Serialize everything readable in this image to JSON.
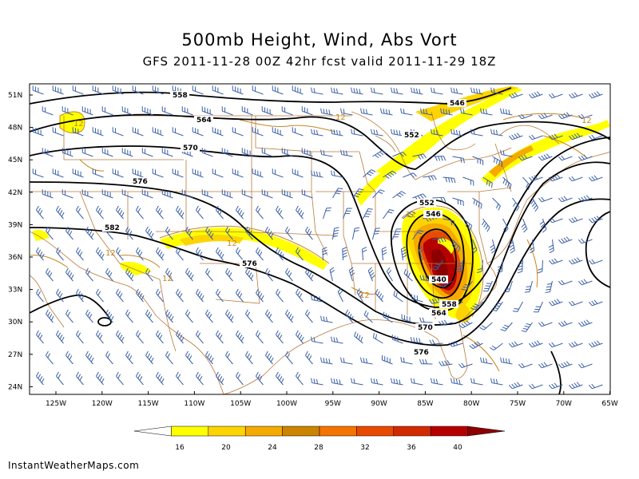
{
  "title": "500mb Height, Wind, Abs Vort",
  "subtitle": "GFS 2011-11-28 00Z 42hr fcst valid 2011-11-29 18Z",
  "credit": "InstantWeatherMaps.com",
  "latitudes": [
    "51N",
    "48N",
    "45N",
    "42N",
    "39N",
    "36N",
    "33N",
    "30N",
    "27N",
    "24N"
  ],
  "longitudes": [
    "125W",
    "120W",
    "115W",
    "110W",
    "105W",
    "100W",
    "95W",
    "90W",
    "85W",
    "80W",
    "75W",
    "70W",
    "65W"
  ],
  "contour_labels": [
    "558",
    "564",
    "570",
    "576",
    "582",
    "576",
    "552",
    "546",
    "540",
    "558",
    "564",
    "570",
    "576",
    "552",
    "546"
  ],
  "vorticity_labels": [
    "12",
    "12",
    "12",
    "12",
    "12",
    "12",
    "12",
    "12"
  ],
  "colorbar": {
    "ticks": [
      "16",
      "20",
      "24",
      "28",
      "32",
      "36",
      "40"
    ],
    "colors": [
      "#ffffff",
      "#ffff00",
      "#fdd400",
      "#f5aa00",
      "#cc8400",
      "#f57300",
      "#e84a00",
      "#d22a00",
      "#b50000",
      "#8c0000"
    ]
  },
  "colors": {
    "state_lines": "#b97a3c",
    "wind_barbs": "#3a5fa8",
    "height_contours": "#000000",
    "vort_contours": "#c8861e"
  }
}
